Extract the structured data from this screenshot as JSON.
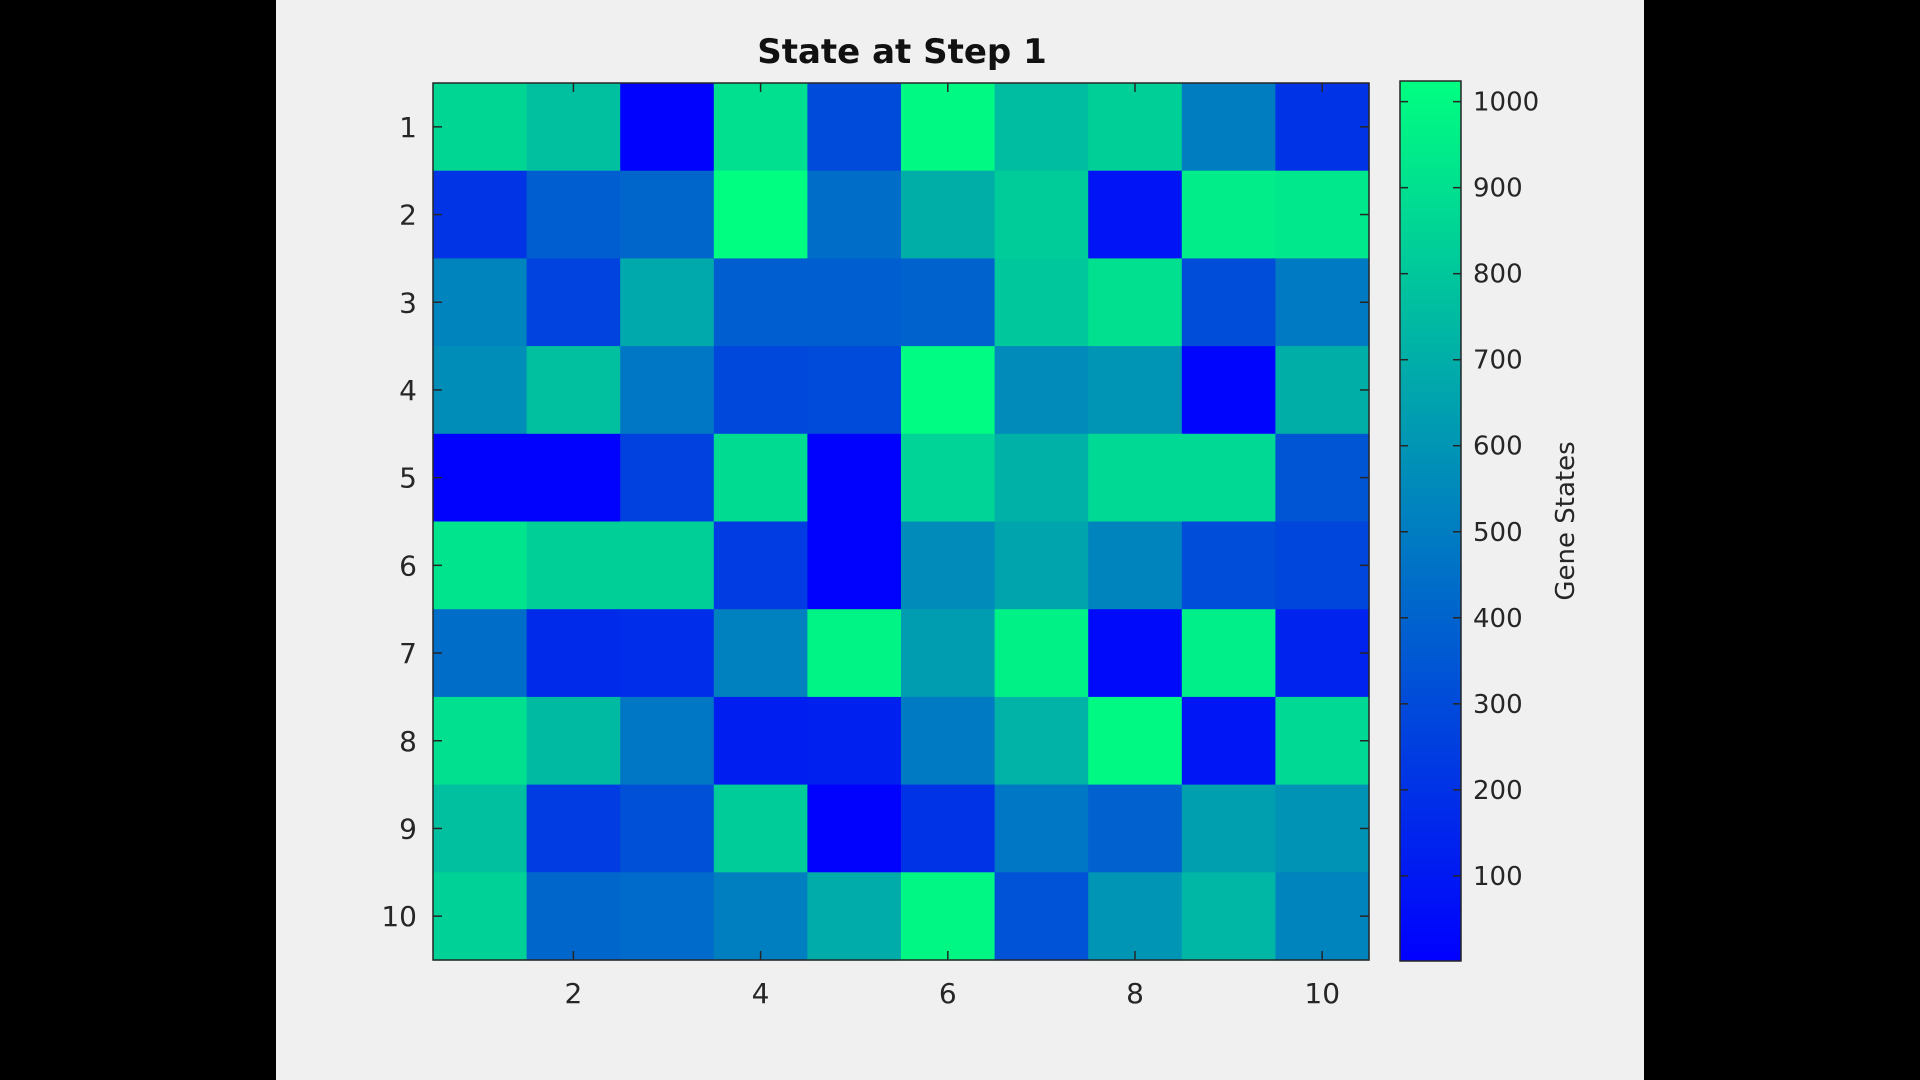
{
  "figure": {
    "background": "#f0f0f0",
    "outer_background": "#000000"
  },
  "chart_data": {
    "type": "heatmap",
    "title": "State at Step 1",
    "xlabel": "",
    "ylabel": "",
    "x_ticks": [
      "2",
      "4",
      "6",
      "8",
      "10"
    ],
    "y_ticks": [
      "1",
      "2",
      "3",
      "4",
      "5",
      "6",
      "7",
      "8",
      "9",
      "10"
    ],
    "colorbar": {
      "label": "Gene States",
      "range": [
        1,
        1024
      ],
      "ticks": [
        "100",
        "200",
        "300",
        "400",
        "500",
        "600",
        "700",
        "800",
        "900",
        "1000"
      ],
      "colormap": "winter",
      "color_low": "#0000ff",
      "color_high": "#00ff80"
    },
    "values": [
      [
        860,
        770,
        10,
        900,
        300,
        1000,
        760,
        830,
        500,
        200
      ],
      [
        210,
        380,
        410,
        1020,
        440,
        700,
        820,
        80,
        950,
        930
      ],
      [
        530,
        270,
        680,
        380,
        380,
        400,
        800,
        900,
        310,
        490
      ],
      [
        570,
        770,
        480,
        290,
        300,
        1010,
        560,
        600,
        20,
        700
      ],
      [
        10,
        10,
        260,
        880,
        10,
        850,
        710,
        870,
        870,
        340
      ],
      [
        920,
        830,
        830,
        240,
        10,
        560,
        660,
        530,
        310,
        280
      ],
      [
        440,
        170,
        180,
        520,
        980,
        630,
        970,
        40,
        960,
        140
      ],
      [
        900,
        750,
        480,
        120,
        130,
        490,
        720,
        1000,
        90,
        870
      ],
      [
        770,
        240,
        320,
        820,
        10,
        200,
        480,
        390,
        640,
        590
      ],
      [
        840,
        410,
        430,
        510,
        690,
        990,
        330,
        600,
        730,
        530
      ]
    ]
  }
}
